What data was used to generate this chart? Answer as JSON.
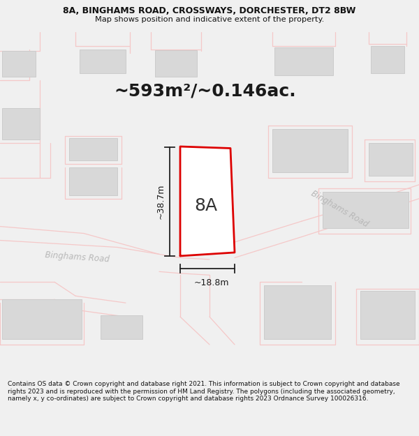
{
  "title_line1": "8A, BINGHAMS ROAD, CROSSWAYS, DORCHESTER, DT2 8BW",
  "title_line2": "Map shows position and indicative extent of the property.",
  "area_text": "~593m²/~0.146ac.",
  "label_8A": "8A",
  "dim_height": "~38.7m",
  "dim_width": "~18.8m",
  "road_label1": "Binghams Road",
  "road_label2": "Binghams Road",
  "footer": "Contains OS data © Crown copyright and database right 2021. This information is subject to Crown copyright and database rights 2023 and is reproduced with the permission of HM Land Registry. The polygons (including the associated geometry, namely x, y co-ordinates) are subject to Crown copyright and database rights 2023 Ordnance Survey 100026316.",
  "bg_color": "#f0f0f0",
  "map_bg": "#ffffff",
  "plot_color_fill": "#ffffff",
  "plot_color_edge": "#dd0000",
  "building_color": "#d8d8d8",
  "building_edge": "#cccccc",
  "parcel_color": "#f5c8c8",
  "dim_line_color": "#222222",
  "road_text_color": "#aaaaaa",
  "title_color": "#111111",
  "footer_color": "#111111",
  "title_fontsize": 9.0,
  "subtitle_fontsize": 8.2,
  "area_fontsize": 18,
  "label_fontsize": 18,
  "dim_fontsize": 9,
  "road_fontsize": 8.5,
  "footer_fontsize": 6.5
}
